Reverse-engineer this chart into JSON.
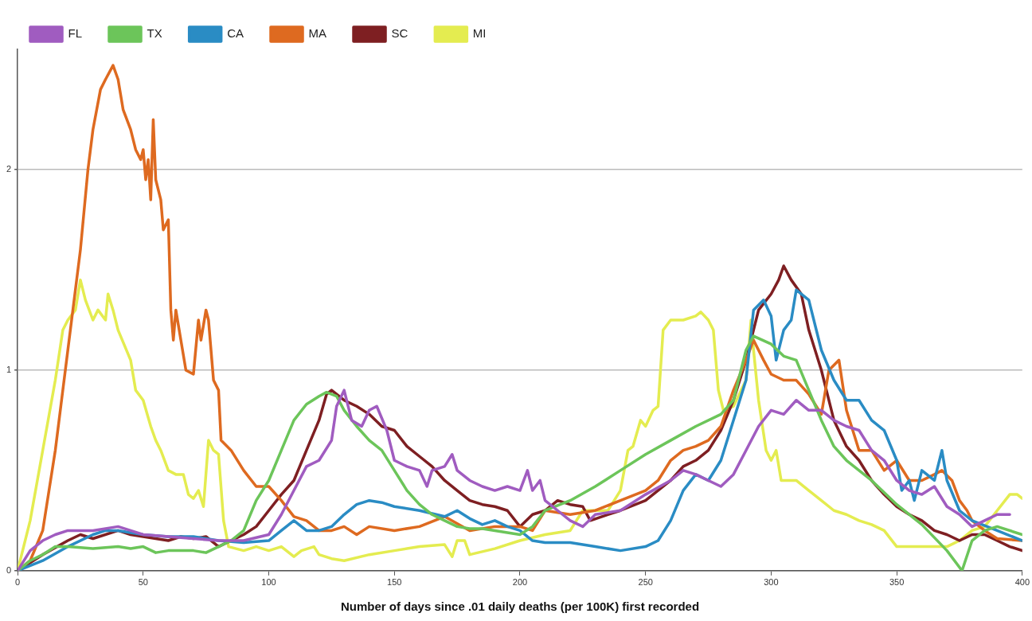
{
  "chart_data": {
    "type": "line",
    "xlabel": "Number of days since .01 daily deaths (per 100K) first recorded",
    "xlim": [
      0,
      400
    ],
    "xticks": [
      0,
      50,
      100,
      150,
      200,
      250,
      300,
      350,
      400
    ],
    "ylim": [
      0,
      2.6
    ],
    "yticks": [
      0,
      1,
      2
    ],
    "grid": "y",
    "legend": "top left",
    "marker": "none",
    "line_style": "solid",
    "series": [
      {
        "name": "FL",
        "color": "#a05cc0",
        "x": [
          0,
          5,
          10,
          15,
          20,
          30,
          40,
          45,
          50,
          60,
          70,
          80,
          90,
          100,
          105,
          110,
          115,
          120,
          125,
          127,
          130,
          133,
          137,
          140,
          143,
          147,
          150,
          155,
          160,
          163,
          165,
          170,
          173,
          175,
          180,
          185,
          190,
          195,
          200,
          203,
          205,
          208,
          210,
          215,
          220,
          225,
          230,
          240,
          250,
          260,
          265,
          270,
          275,
          280,
          285,
          290,
          295,
          300,
          305,
          310,
          315,
          320,
          325,
          330,
          335,
          340,
          345,
          350,
          355,
          360,
          365,
          370,
          375,
          380,
          385,
          390,
          395
        ],
        "values": [
          0,
          0.1,
          0.15,
          0.18,
          0.2,
          0.2,
          0.22,
          0.2,
          0.18,
          0.17,
          0.16,
          0.15,
          0.15,
          0.18,
          0.28,
          0.4,
          0.52,
          0.55,
          0.65,
          0.82,
          0.9,
          0.75,
          0.72,
          0.8,
          0.82,
          0.7,
          0.55,
          0.52,
          0.5,
          0.42,
          0.5,
          0.52,
          0.58,
          0.5,
          0.45,
          0.42,
          0.4,
          0.42,
          0.4,
          0.5,
          0.4,
          0.45,
          0.35,
          0.3,
          0.25,
          0.22,
          0.28,
          0.3,
          0.38,
          0.45,
          0.5,
          0.48,
          0.45,
          0.42,
          0.48,
          0.6,
          0.72,
          0.8,
          0.78,
          0.85,
          0.8,
          0.8,
          0.75,
          0.72,
          0.7,
          0.6,
          0.55,
          0.45,
          0.4,
          0.38,
          0.42,
          0.32,
          0.28,
          0.22,
          0.25,
          0.28,
          0.28
        ]
      },
      {
        "name": "TX",
        "color": "#6cc55a",
        "x": [
          0,
          5,
          10,
          15,
          20,
          30,
          40,
          45,
          50,
          55,
          60,
          70,
          75,
          80,
          85,
          90,
          95,
          100,
          105,
          110,
          115,
          120,
          123,
          127,
          130,
          135,
          140,
          145,
          150,
          155,
          160,
          165,
          170,
          175,
          180,
          185,
          190,
          195,
          200,
          205,
          210,
          220,
          230,
          240,
          250,
          260,
          270,
          280,
          285,
          290,
          293,
          300,
          305,
          310,
          315,
          320,
          325,
          330,
          340,
          350,
          360,
          370,
          376,
          380,
          385,
          390,
          400
        ],
        "values": [
          0,
          0.05,
          0.08,
          0.12,
          0.12,
          0.11,
          0.12,
          0.11,
          0.12,
          0.09,
          0.1,
          0.1,
          0.09,
          0.12,
          0.15,
          0.2,
          0.35,
          0.45,
          0.6,
          0.75,
          0.83,
          0.87,
          0.89,
          0.87,
          0.8,
          0.72,
          0.65,
          0.6,
          0.5,
          0.4,
          0.33,
          0.28,
          0.25,
          0.22,
          0.21,
          0.21,
          0.2,
          0.19,
          0.18,
          0.22,
          0.3,
          0.35,
          0.42,
          0.5,
          0.58,
          0.65,
          0.72,
          0.78,
          0.85,
          1.1,
          1.17,
          1.13,
          1.07,
          1.05,
          0.9,
          0.75,
          0.62,
          0.55,
          0.45,
          0.33,
          0.23,
          0.1,
          0,
          0.15,
          0.2,
          0.22,
          0.18
        ]
      },
      {
        "name": "CA",
        "color": "#2a8cc4",
        "x": [
          0,
          10,
          20,
          30,
          35,
          40,
          50,
          60,
          70,
          80,
          90,
          100,
          105,
          110,
          115,
          120,
          125,
          130,
          135,
          140,
          145,
          150,
          160,
          170,
          175,
          180,
          185,
          190,
          195,
          200,
          205,
          210,
          220,
          230,
          240,
          250,
          255,
          260,
          265,
          270,
          275,
          280,
          285,
          290,
          293,
          297,
          300,
          302,
          305,
          308,
          310,
          315,
          320,
          325,
          330,
          335,
          340,
          345,
          350,
          352,
          355,
          357,
          360,
          365,
          368,
          370,
          375,
          380,
          390,
          400
        ],
        "values": [
          0,
          0.05,
          0.12,
          0.18,
          0.2,
          0.2,
          0.18,
          0.17,
          0.17,
          0.15,
          0.14,
          0.15,
          0.2,
          0.25,
          0.2,
          0.2,
          0.22,
          0.28,
          0.33,
          0.35,
          0.34,
          0.32,
          0.3,
          0.27,
          0.3,
          0.26,
          0.23,
          0.25,
          0.22,
          0.2,
          0.15,
          0.14,
          0.14,
          0.12,
          0.1,
          0.12,
          0.15,
          0.25,
          0.4,
          0.48,
          0.45,
          0.55,
          0.75,
          0.95,
          1.3,
          1.35,
          1.27,
          1.05,
          1.2,
          1.25,
          1.4,
          1.35,
          1.1,
          0.95,
          0.85,
          0.85,
          0.75,
          0.7,
          0.55,
          0.4,
          0.45,
          0.35,
          0.5,
          0.45,
          0.6,
          0.45,
          0.3,
          0.25,
          0.2,
          0.15
        ]
      },
      {
        "name": "MA",
        "color": "#de6a20",
        "x": [
          0,
          5,
          10,
          15,
          20,
          25,
          28,
          30,
          33,
          35,
          38,
          40,
          42,
          45,
          47,
          49,
          50,
          51,
          52,
          53,
          54,
          55,
          57,
          58,
          60,
          61,
          62,
          63,
          65,
          67,
          70,
          72,
          73,
          75,
          76,
          78,
          80,
          81,
          85,
          90,
          95,
          100,
          105,
          110,
          115,
          120,
          125,
          130,
          135,
          140,
          150,
          160,
          170,
          180,
          190,
          200,
          205,
          210,
          220,
          230,
          240,
          250,
          255,
          260,
          265,
          270,
          275,
          280,
          285,
          290,
          293,
          297,
          300,
          305,
          310,
          315,
          320,
          323,
          327,
          330,
          335,
          340,
          345,
          350,
          355,
          360,
          365,
          368,
          372,
          375,
          378,
          380,
          385,
          390,
          400
        ],
        "values": [
          0,
          0.05,
          0.2,
          0.6,
          1.1,
          1.6,
          2,
          2.2,
          2.4,
          2.45,
          2.52,
          2.45,
          2.3,
          2.2,
          2.1,
          2.05,
          2.1,
          1.95,
          2.05,
          1.85,
          2.25,
          1.95,
          1.85,
          1.7,
          1.75,
          1.3,
          1.15,
          1.3,
          1.15,
          1,
          0.98,
          1.25,
          1.15,
          1.3,
          1.25,
          0.95,
          0.9,
          0.65,
          0.6,
          0.5,
          0.42,
          0.42,
          0.35,
          0.27,
          0.25,
          0.2,
          0.2,
          0.22,
          0.18,
          0.22,
          0.2,
          0.22,
          0.27,
          0.2,
          0.22,
          0.22,
          0.2,
          0.3,
          0.28,
          0.3,
          0.35,
          0.4,
          0.45,
          0.55,
          0.6,
          0.62,
          0.65,
          0.72,
          0.9,
          1.05,
          1.15,
          1.05,
          0.98,
          0.95,
          0.95,
          0.88,
          0.78,
          1,
          1.05,
          0.8,
          0.6,
          0.6,
          0.5,
          0.55,
          0.45,
          0.45,
          0.48,
          0.5,
          0.45,
          0.35,
          0.3,
          0.25,
          0.2,
          0.16,
          0.15
        ]
      },
      {
        "name": "SC",
        "color": "#7e1f22",
        "x": [
          0,
          10,
          20,
          25,
          30,
          40,
          45,
          50,
          60,
          65,
          70,
          75,
          80,
          85,
          90,
          95,
          100,
          105,
          110,
          115,
          120,
          123,
          125,
          130,
          135,
          140,
          145,
          150,
          155,
          160,
          165,
          170,
          175,
          180,
          185,
          190,
          195,
          200,
          205,
          210,
          215,
          220,
          225,
          228,
          235,
          240,
          250,
          260,
          265,
          270,
          275,
          280,
          285,
          290,
          295,
          300,
          303,
          305,
          308,
          312,
          315,
          320,
          325,
          330,
          335,
          340,
          345,
          350,
          355,
          360,
          365,
          370,
          375,
          380,
          385,
          390,
          395,
          400
        ],
        "values": [
          0,
          0.08,
          0.15,
          0.18,
          0.16,
          0.2,
          0.18,
          0.17,
          0.15,
          0.17,
          0.16,
          0.17,
          0.12,
          0.15,
          0.18,
          0.22,
          0.3,
          0.38,
          0.45,
          0.6,
          0.75,
          0.88,
          0.9,
          0.85,
          0.82,
          0.78,
          0.72,
          0.7,
          0.62,
          0.57,
          0.52,
          0.45,
          0.4,
          0.35,
          0.33,
          0.32,
          0.3,
          0.22,
          0.28,
          0.3,
          0.35,
          0.33,
          0.32,
          0.25,
          0.28,
          0.3,
          0.35,
          0.45,
          0.52,
          0.55,
          0.6,
          0.7,
          0.85,
          1.05,
          1.3,
          1.38,
          1.45,
          1.52,
          1.45,
          1.38,
          1.2,
          1,
          0.75,
          0.62,
          0.55,
          0.45,
          0.38,
          0.32,
          0.28,
          0.25,
          0.2,
          0.18,
          0.15,
          0.18,
          0.18,
          0.15,
          0.12,
          0.1
        ]
      },
      {
        "name": "MI",
        "color": "#e4ec50",
        "x": [
          0,
          5,
          10,
          15,
          18,
          20,
          23,
          25,
          27,
          30,
          32,
          35,
          36,
          38,
          40,
          45,
          47,
          50,
          53,
          55,
          57,
          60,
          63,
          66,
          68,
          70,
          72,
          74,
          76,
          78,
          80,
          82,
          84,
          90,
          95,
          100,
          105,
          108,
          110,
          113,
          118,
          120,
          125,
          130,
          140,
          150,
          160,
          170,
          173,
          175,
          178,
          180,
          190,
          200,
          210,
          220,
          225,
          230,
          235,
          240,
          243,
          245,
          248,
          250,
          253,
          255,
          257,
          260,
          265,
          270,
          272,
          275,
          277,
          279,
          281,
          285,
          290,
          292,
          293,
          295,
          298,
          300,
          302,
          304,
          310,
          315,
          320,
          325,
          330,
          335,
          340,
          345,
          350,
          355,
          360,
          370,
          375,
          380,
          385,
          390,
          395,
          398,
          400
        ],
        "values": [
          0,
          0.25,
          0.6,
          0.95,
          1.2,
          1.25,
          1.3,
          1.45,
          1.35,
          1.25,
          1.3,
          1.25,
          1.38,
          1.3,
          1.2,
          1.05,
          0.9,
          0.85,
          0.72,
          0.65,
          0.6,
          0.5,
          0.48,
          0.48,
          0.38,
          0.36,
          0.4,
          0.32,
          0.65,
          0.6,
          0.58,
          0.25,
          0.12,
          0.1,
          0.12,
          0.1,
          0.12,
          0.09,
          0.07,
          0.1,
          0.12,
          0.08,
          0.06,
          0.05,
          0.08,
          0.1,
          0.12,
          0.13,
          0.07,
          0.15,
          0.15,
          0.08,
          0.11,
          0.15,
          0.18,
          0.2,
          0.3,
          0.3,
          0.3,
          0.4,
          0.6,
          0.62,
          0.75,
          0.72,
          0.8,
          0.82,
          1.2,
          1.25,
          1.25,
          1.27,
          1.29,
          1.25,
          1.2,
          0.9,
          0.8,
          0.82,
          0.95,
          1.25,
          1.1,
          0.85,
          0.6,
          0.55,
          0.6,
          0.45,
          0.45,
          0.4,
          0.35,
          0.3,
          0.28,
          0.25,
          0.23,
          0.2,
          0.12,
          0.12,
          0.12,
          0.12,
          0.15,
          0.2,
          0.22,
          0.3,
          0.38,
          0.38,
          0.36
        ]
      }
    ]
  }
}
